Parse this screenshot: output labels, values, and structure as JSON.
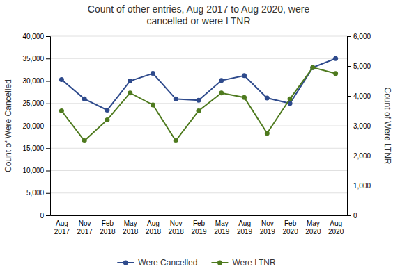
{
  "chart_data": {
    "type": "line",
    "title": "Count of other entries, Aug 2017 to Aug 2020, were\ncancelled or were LTNR",
    "categories": [
      "Aug\n2017",
      "Nov\n2017",
      "Feb\n2018",
      "May\n2018",
      "Aug\n2018",
      "Nov\n2018",
      "Feb\n2019",
      "May\n2019",
      "Aug\n2019",
      "Nov\n2019",
      "Feb\n2020",
      "May\n2020",
      "Aug\n2020"
    ],
    "series": [
      {
        "name": "Were Cancelled",
        "color": "#2E4A8C",
        "values": [
          30300,
          26000,
          23500,
          30000,
          31700,
          26000,
          25700,
          30100,
          31200,
          26200,
          25000,
          33000,
          35000
        ]
      },
      {
        "name": "Were LTNR",
        "color": "#4E7A1E",
        "axis": "y2",
        "values": [
          3500,
          2500,
          3200,
          4100,
          3700,
          2500,
          3500,
          4100,
          3950,
          2750,
          3900,
          4950,
          4750
        ]
      }
    ],
    "ylabel": "Count of Were Cancelled",
    "y2label": "Count of Were LTNR",
    "ylim": [
      0,
      40000
    ],
    "yticks": [
      0,
      {
        "value": 5000,
        "label": "5,000"
      },
      {
        "value": 10000,
        "label": "10,000"
      },
      {
        "value": 15000,
        "label": "15,000"
      },
      {
        "value": 20000,
        "label": "20,000"
      },
      {
        "value": 25000,
        "label": "25,000"
      },
      {
        "value": 30000,
        "label": "30,000"
      },
      {
        "value": 35000,
        "label": "35,000"
      },
      {
        "value": 40000,
        "label": "40,000"
      }
    ],
    "y2lim": [
      0,
      6000
    ],
    "y2ticks": [
      0,
      {
        "value": 1000,
        "label": "1,000"
      },
      {
        "value": 2000,
        "label": "2,000"
      },
      {
        "value": 3000,
        "label": "3,000"
      },
      {
        "value": 4000,
        "label": "4,000"
      },
      {
        "value": 5000,
        "label": "5,000"
      },
      {
        "value": 6000,
        "label": "6,000"
      }
    ],
    "grid": true,
    "legend": "bottom",
    "marker": "circle"
  }
}
